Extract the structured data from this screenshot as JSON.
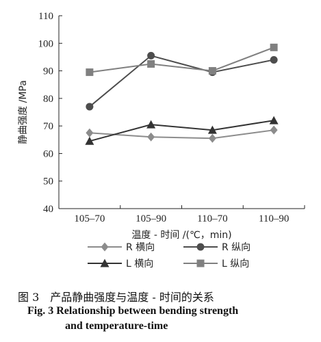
{
  "chart_data": {
    "type": "line",
    "ylabel": "静曲强度 /MPa",
    "xlabel": "温度 - 时间 /(℃，min)",
    "ylim": [
      40,
      110
    ],
    "yticks": [
      40,
      50,
      60,
      70,
      80,
      90,
      100,
      110
    ],
    "categories": [
      "105–70",
      "105–90",
      "110–70",
      "110–90"
    ],
    "series": [
      {
        "name": "R 横向",
        "marker": "diamond",
        "color": "#8c8c8c",
        "values": [
          67.5,
          66.0,
          65.5,
          68.5
        ]
      },
      {
        "name": "R 纵向",
        "marker": "circle",
        "color": "#4d4d4d",
        "values": [
          77.0,
          95.5,
          89.5,
          94.0
        ]
      },
      {
        "name": "L 横向",
        "marker": "triangle",
        "color": "#333333",
        "values": [
          64.5,
          70.5,
          68.5,
          72.0
        ]
      },
      {
        "name": "L 纵向",
        "marker": "square",
        "color": "#808080",
        "values": [
          89.5,
          92.5,
          90.0,
          98.5
        ]
      }
    ],
    "legend_position": "bottom"
  },
  "caption": {
    "cn": "图 3　产品静曲强度与温度 - 时间的关系",
    "en_line1": "Fig. 3   Relationship between bending strength",
    "en_line2": "and temperature-time"
  }
}
